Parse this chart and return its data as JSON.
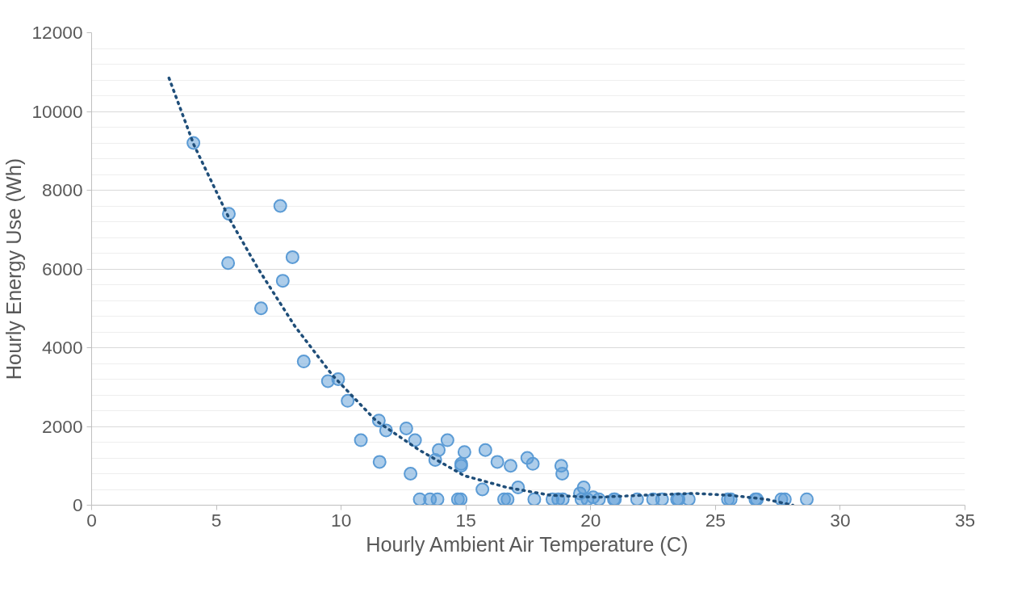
{
  "chart_data": {
    "type": "scatter",
    "xlabel": "Hourly Ambient Air Temperature (C)",
    "ylabel": "Hourly Energy Use (Wh)",
    "xlim": [
      0,
      35
    ],
    "xticks": [
      0,
      5,
      10,
      15,
      20,
      25,
      30,
      35
    ],
    "ylim": [
      0,
      12000
    ],
    "yticks": [
      0,
      {
        "value": 400,
        "label": null
      },
      {
        "value": 800,
        "label": null
      },
      {
        "value": 1200,
        "label": null
      },
      {
        "value": 1600,
        "label": null
      },
      2000,
      {
        "value": 2400,
        "label": null
      },
      {
        "value": 2800,
        "label": null
      },
      {
        "value": 3200,
        "label": null
      },
      {
        "value": 3600,
        "label": null
      },
      4000,
      {
        "value": 4400,
        "label": null
      },
      {
        "value": 4800,
        "label": null
      },
      {
        "value": 5200,
        "label": null
      },
      {
        "value": 5600,
        "label": null
      },
      6000,
      {
        "value": 6400,
        "label": null
      },
      {
        "value": 6800,
        "label": null
      },
      {
        "value": 7200,
        "label": null
      },
      {
        "value": 7600,
        "label": null
      },
      8000,
      {
        "value": 8400,
        "label": null
      },
      {
        "value": 8800,
        "label": null
      },
      {
        "value": 9200,
        "label": null
      },
      {
        "value": 9600,
        "label": null
      },
      10000,
      {
        "value": 10400,
        "label": null
      },
      {
        "value": 10800,
        "label": null
      },
      {
        "value": 11200,
        "label": null
      },
      {
        "value": 11600,
        "label": null
      },
      12000
    ],
    "grid": "y",
    "series": [
      {
        "marker": "circle",
        "color": "#5b9bd5",
        "x": [
          4.08,
          5.5,
          5.47,
          7.56,
          8.05,
          7.66,
          6.79,
          8.5,
          9.47,
          9.88,
          10.26,
          10.79,
          11.51,
          11.8,
          11.54,
          12.61,
          12.96,
          12.78,
          13.15,
          13.56,
          13.86,
          13.77,
          13.91,
          14.26,
          14.68,
          14.79,
          14.81,
          14.81,
          14.94,
          15.78,
          15.66,
          16.26,
          16.53,
          16.67,
          16.79,
          17.09,
          17.46,
          17.68,
          17.74,
          18.47,
          18.7,
          18.88,
          18.82,
          18.86,
          19.57,
          19.72,
          19.63,
          19.87,
          20.1,
          20.33,
          20.93,
          20.97,
          21.86,
          22.5,
          22.86,
          23.46,
          23.52,
          23.93,
          25.5,
          25.61,
          26.6,
          26.66,
          27.64,
          27.78,
          28.66
        ],
        "values": [
          9200,
          7400,
          6150,
          7600,
          6300,
          5700,
          5000,
          3650,
          3150,
          3200,
          2650,
          1650,
          2150,
          1900,
          1100,
          1950,
          1650,
          800,
          150,
          150,
          150,
          1150,
          1400,
          1650,
          150,
          150,
          1050,
          1000,
          1350,
          1400,
          400,
          1100,
          150,
          150,
          1000,
          450,
          1200,
          1050,
          150,
          150,
          150,
          150,
          1000,
          800,
          300,
          450,
          150,
          150,
          200,
          150,
          150,
          150,
          150,
          150,
          150,
          150,
          150,
          150,
          150,
          150,
          150,
          150,
          150,
          150,
          150
        ]
      },
      {
        "type": "line",
        "marker": "none",
        "line_style": "dotted",
        "color": "#1f4e79",
        "x": [
          3.1,
          4.1,
          5.5,
          6.63,
          8.14,
          9.65,
          11.39,
          13.13,
          14.93,
          16.64,
          18.41,
          20.2,
          22.0,
          24.16,
          25.6,
          27.03,
          28.1
        ],
        "values": [
          10850,
          9150,
          7300,
          6050,
          4550,
          3300,
          2150,
          1400,
          750,
          450,
          250,
          200,
          250,
          300,
          250,
          150,
          0
        ]
      }
    ]
  }
}
